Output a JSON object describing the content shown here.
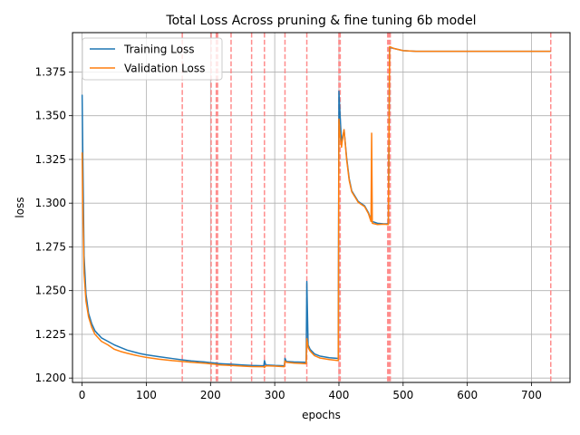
{
  "chart_data": {
    "type": "line",
    "title": "Total Loss Across pruning & fine tuning 6b model",
    "xlabel": "epochs",
    "ylabel": "loss",
    "xlim": [
      -15,
      760
    ],
    "ylim": [
      1.1975,
      1.3975
    ],
    "xticks": [
      0,
      100,
      200,
      300,
      400,
      500,
      600,
      700
    ],
    "yticks": [
      1.2,
      1.225,
      1.25,
      1.275,
      1.3,
      1.325,
      1.35,
      1.375
    ],
    "ytick_labels": [
      "1.200",
      "1.225",
      "1.250",
      "1.275",
      "1.300",
      "1.325",
      "1.350",
      "1.375"
    ],
    "grid": true,
    "legend_position": "top-left",
    "vlines": {
      "color": "#ff7f7f",
      "style": "dashed",
      "x": [
        156,
        201,
        209,
        211,
        232,
        264,
        284,
        316,
        350,
        400,
        402,
        476,
        478,
        480,
        730
      ]
    },
    "series": [
      {
        "name": "Training Loss",
        "color": "#1f77b4",
        "points": [
          [
            0,
            1.362
          ],
          [
            1,
            1.33
          ],
          [
            3,
            1.27
          ],
          [
            6,
            1.248
          ],
          [
            10,
            1.237
          ],
          [
            15,
            1.231
          ],
          [
            20,
            1.227
          ],
          [
            30,
            1.223
          ],
          [
            40,
            1.221
          ],
          [
            50,
            1.219
          ],
          [
            60,
            1.2175
          ],
          [
            70,
            1.216
          ],
          [
            80,
            1.215
          ],
          [
            90,
            1.214
          ],
          [
            100,
            1.2133
          ],
          [
            120,
            1.2122
          ],
          [
            140,
            1.2112
          ],
          [
            156,
            1.2104
          ],
          [
            170,
            1.2098
          ],
          [
            190,
            1.2092
          ],
          [
            201,
            1.2088
          ],
          [
            209,
            1.2085
          ],
          [
            211,
            1.2083
          ],
          [
            220,
            1.2081
          ],
          [
            232,
            1.2079
          ],
          [
            250,
            1.2075
          ],
          [
            264,
            1.2072
          ],
          [
            283,
            1.207
          ],
          [
            284,
            1.21
          ],
          [
            286,
            1.2075
          ],
          [
            300,
            1.2072
          ],
          [
            315,
            1.207
          ],
          [
            316,
            1.2113
          ],
          [
            318,
            1.2095
          ],
          [
            330,
            1.2092
          ],
          [
            349,
            1.209
          ],
          [
            350,
            1.2552
          ],
          [
            352,
            1.219
          ],
          [
            355,
            1.2165
          ],
          [
            362,
            1.2138
          ],
          [
            370,
            1.2126
          ],
          [
            385,
            1.2116
          ],
          [
            399,
            1.2112
          ],
          [
            400,
            1.364
          ],
          [
            402,
            1.349
          ],
          [
            404,
            1.335
          ],
          [
            407,
            1.34
          ],
          [
            408,
            1.342
          ],
          [
            412,
            1.326
          ],
          [
            416,
            1.314
          ],
          [
            420,
            1.307
          ],
          [
            425,
            1.304
          ],
          [
            430,
            1.301
          ],
          [
            440,
            1.2985
          ],
          [
            446,
            1.2945
          ],
          [
            450,
            1.2905
          ],
          [
            452,
            1.2895
          ],
          [
            460,
            1.2885
          ],
          [
            470,
            1.2882
          ],
          [
            477,
            1.2882
          ],
          [
            479,
            1.389
          ],
          [
            485,
            1.3885
          ],
          [
            500,
            1.3872
          ],
          [
            520,
            1.3868
          ],
          [
            560,
            1.3868
          ],
          [
            600,
            1.3868
          ],
          [
            650,
            1.3868
          ],
          [
            700,
            1.3868
          ],
          [
            730,
            1.3868
          ]
        ]
      },
      {
        "name": "Validation Loss",
        "color": "#ff7f0e",
        "points": [
          [
            0,
            1.329
          ],
          [
            1,
            1.3
          ],
          [
            3,
            1.26
          ],
          [
            6,
            1.244
          ],
          [
            10,
            1.235
          ],
          [
            15,
            1.229
          ],
          [
            20,
            1.225
          ],
          [
            30,
            1.221
          ],
          [
            40,
            1.219
          ],
          [
            50,
            1.2165
          ],
          [
            60,
            1.2152
          ],
          [
            70,
            1.2142
          ],
          [
            80,
            1.2133
          ],
          [
            90,
            1.2125
          ],
          [
            100,
            1.2118
          ],
          [
            120,
            1.2108
          ],
          [
            140,
            1.21
          ],
          [
            156,
            1.2095
          ],
          [
            170,
            1.209
          ],
          [
            190,
            1.2085
          ],
          [
            201,
            1.2081
          ],
          [
            209,
            1.2078
          ],
          [
            211,
            1.2076
          ],
          [
            220,
            1.2074
          ],
          [
            232,
            1.2072
          ],
          [
            250,
            1.2068
          ],
          [
            264,
            1.2066
          ],
          [
            283,
            1.2065
          ],
          [
            284,
            1.206
          ],
          [
            286,
            1.207
          ],
          [
            300,
            1.2068
          ],
          [
            315,
            1.2065
          ],
          [
            316,
            1.2098
          ],
          [
            318,
            1.209
          ],
          [
            330,
            1.2086
          ],
          [
            349,
            1.2082
          ],
          [
            350,
            1.2225
          ],
          [
            352,
            1.2175
          ],
          [
            355,
            1.2155
          ],
          [
            362,
            1.2128
          ],
          [
            370,
            1.2115
          ],
          [
            385,
            1.2106
          ],
          [
            399,
            1.21
          ],
          [
            400,
            1.348
          ],
          [
            402,
            1.338
          ],
          [
            404,
            1.332
          ],
          [
            407,
            1.34
          ],
          [
            408,
            1.342
          ],
          [
            412,
            1.325
          ],
          [
            416,
            1.313
          ],
          [
            420,
            1.3065
          ],
          [
            425,
            1.3035
          ],
          [
            430,
            1.3005
          ],
          [
            440,
            1.298
          ],
          [
            446,
            1.294
          ],
          [
            450,
            1.2895
          ],
          [
            451,
            1.34
          ],
          [
            452,
            1.2885
          ],
          [
            460,
            1.2878
          ],
          [
            470,
            1.288
          ],
          [
            477,
            1.2878
          ],
          [
            479,
            1.3895
          ],
          [
            485,
            1.3885
          ],
          [
            500,
            1.3872
          ],
          [
            520,
            1.3868
          ],
          [
            560,
            1.3868
          ],
          [
            600,
            1.3868
          ],
          [
            650,
            1.3868
          ],
          [
            700,
            1.3868
          ],
          [
            730,
            1.3868
          ]
        ]
      }
    ]
  }
}
